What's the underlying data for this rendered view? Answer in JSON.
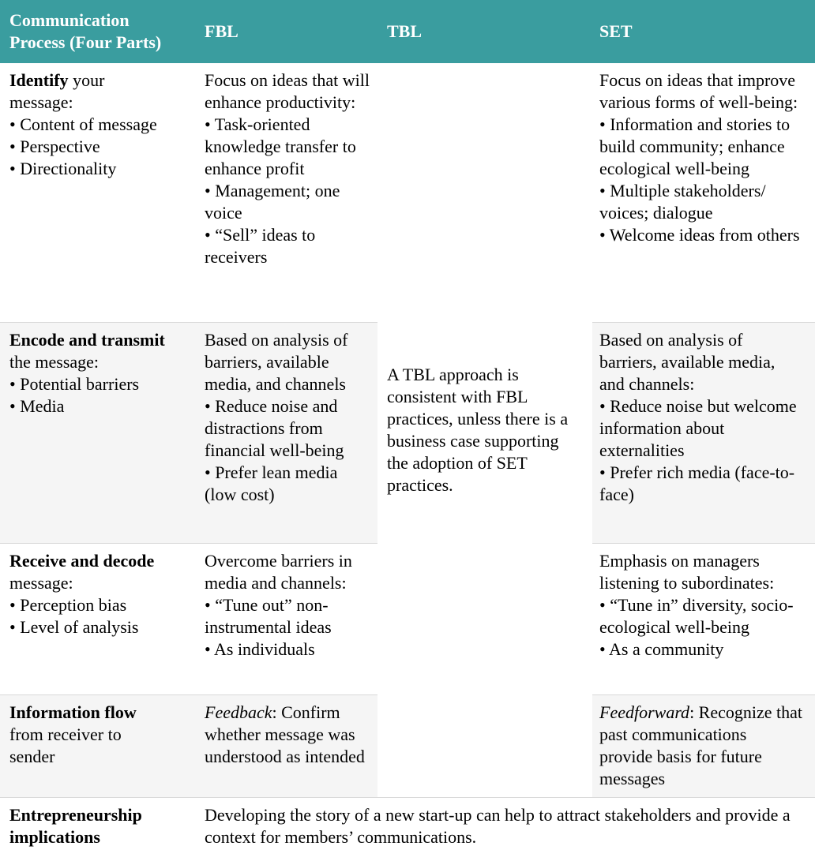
{
  "colors": {
    "header_bg": "#3a9d9f",
    "header_text": "#ffffff",
    "row_alt_bg": "#f5f5f5",
    "border": "#d9d9d9",
    "body_text": "#000000"
  },
  "table": {
    "headers": [
      "Communication Process (Four Parts)",
      "FBL",
      "TBL",
      "SET"
    ],
    "tbl_note": "A TBL approach is consistent with FBL practices, unless there is a business case supporting the adoption of SET practices.",
    "rows": [
      {
        "label": {
          "bold": "Identify",
          "rest": " your message:"
        },
        "label_bullets": [
          "• Content of message",
          "• Perspective",
          "• Directionality"
        ],
        "fbl": {
          "intro": "Focus on ideas that will enhance productivity:",
          "bullets": [
            "• Task-oriented knowledge transfer to enhance profit",
            "• Management; one voice",
            "• “Sell” ideas to receivers"
          ]
        },
        "set": {
          "intro": "Focus on ideas that improve various forms of well-being:",
          "bullets": [
            "• Information and stories to build community; enhance ecological well-being",
            "• Multiple stakeholders/ voices; dialogue",
            "• Welcome ideas from others"
          ]
        }
      },
      {
        "label": {
          "bold": "Encode and transmit",
          "rest": " the message:"
        },
        "label_bullets": [
          "• Potential barriers",
          "• Media"
        ],
        "fbl": {
          "intro": "Based on analysis of barriers, available media, and channels",
          "bullets": [
            "• Reduce noise and distractions from financial well-being",
            "• Prefer lean media (low cost)"
          ]
        },
        "set": {
          "intro": "Based on analysis of barriers, available media, and channels:",
          "bullets": [
            "• Reduce noise but welcome information about externalities",
            "• Prefer rich media (face-to-face)"
          ]
        }
      },
      {
        "label": {
          "bold": "Receive and decode",
          "rest": " message:"
        },
        "label_bullets": [
          "• Perception bias",
          "• Level of analysis"
        ],
        "fbl": {
          "intro": "Overcome barriers in media and channels:",
          "bullets": [
            "• “Tune out” non-instrumental ideas",
            "• As individuals"
          ]
        },
        "set": {
          "intro": "Emphasis on managers listening to subordinates:",
          "bullets": [
            "• “Tune in” diversity, socio-ecological well-being",
            "• As a community"
          ]
        }
      },
      {
        "label": {
          "bold": "Information flow",
          "rest": " from receiver to sender"
        },
        "fbl": {
          "italic": "Feedback",
          "rest": ": Confirm whether message was understood as intended"
        },
        "set": {
          "italic": "Feedforward",
          "rest": ": Recognize that past communications provide basis for future messages"
        }
      },
      {
        "label": {
          "bold": "Entrepreneurship implications",
          "rest": ""
        },
        "merged": "Developing the story of a new start-up can help to attract stakeholders and provide a context for members’ communications."
      }
    ]
  }
}
